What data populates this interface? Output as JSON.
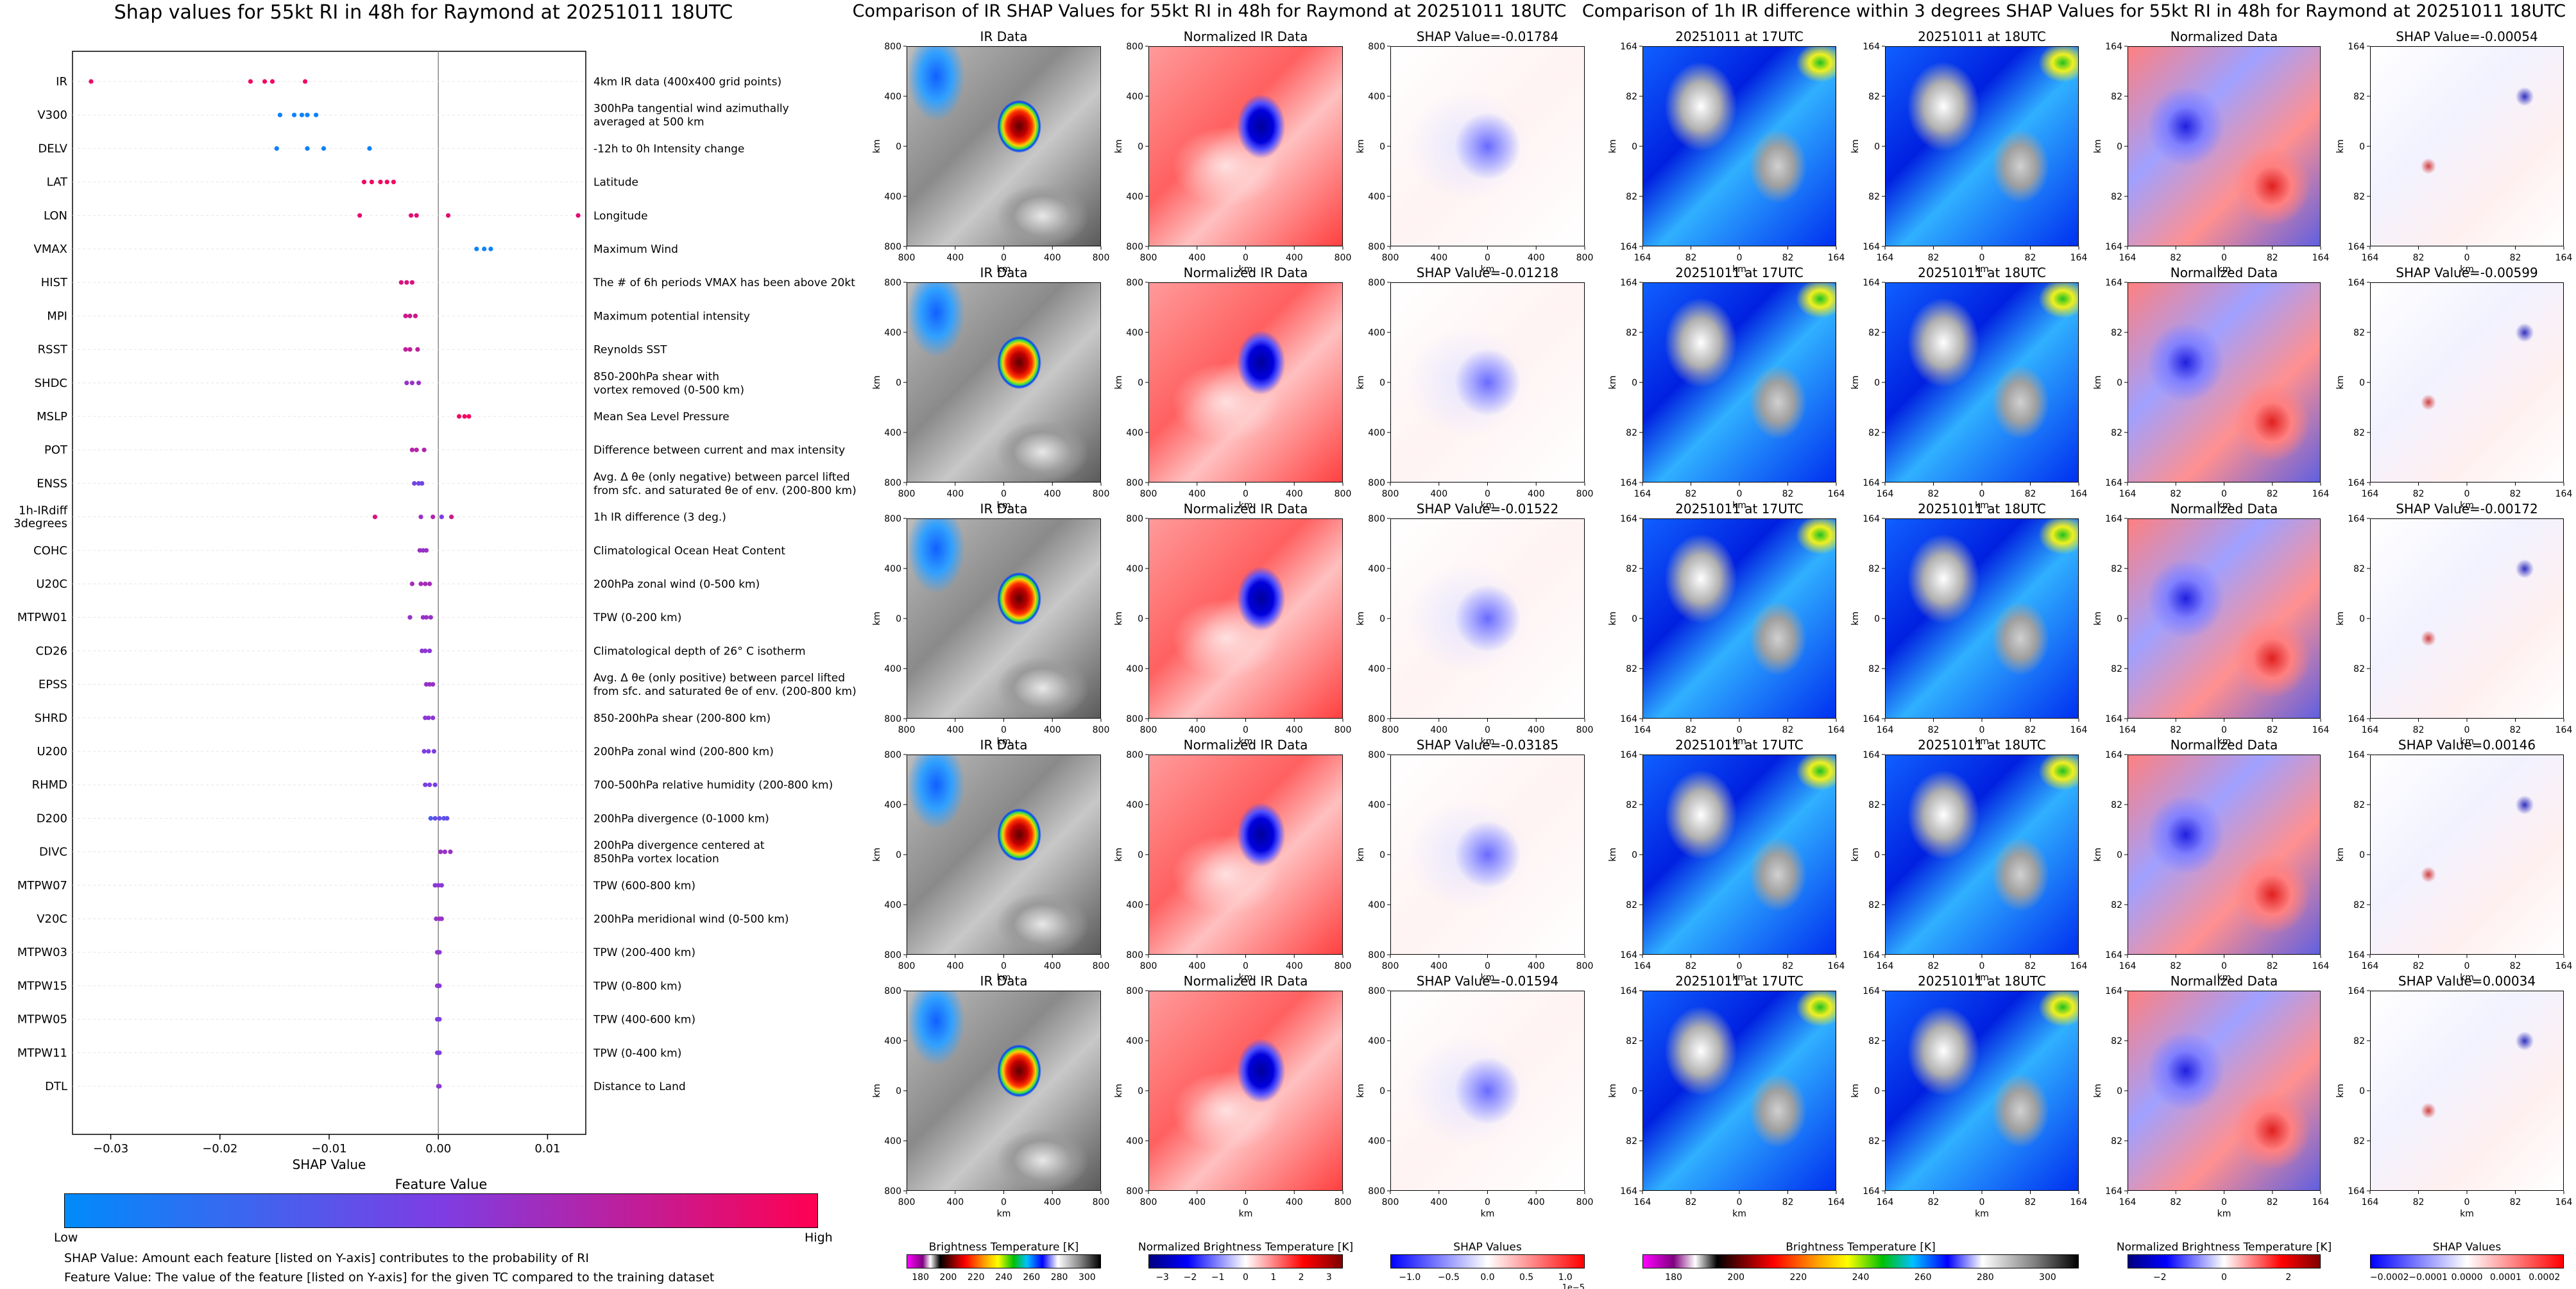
{
  "left_title": "Shap values for 55kt RI in 48h for Raymond at 20251011 18UTC",
  "mid_title": "Comparison of IR SHAP Values for 55kt RI in 48h for Raymond at 20251011 18UTC",
  "right_title": "Comparison of 1h IR difference within 3 degrees SHAP Values for 55kt RI in 48h for Raymond at 20251011 18UTC",
  "colors": {
    "low": "#008bfb",
    "high": "#ff0052"
  },
  "feature_colorbar": {
    "title": "Feature Value",
    "low": "Low",
    "high": "High"
  },
  "notes": [
    "SHAP Value: Amount each feature [listed on Y-axis] contributes to the probability of RI",
    "Feature Value: The value of the feature [listed on Y-axis] for the given TC compared to the training dataset"
  ],
  "chart_data": [
    {
      "type": "scatter",
      "title": "Shap values for 55kt RI in 48h for Raymond at 20251011 18UTC",
      "xlabel": "SHAP Value",
      "xticks": [
        "−0.03",
        "−0.02",
        "−0.01",
        "0.00",
        "0.01"
      ],
      "xlim": [
        -0.0335,
        0.0135
      ],
      "features": [
        {
          "name": "IR",
          "desc": "4km IR data (400x400 grid points)",
          "points": [
            [
              -0.0318,
              0.95
            ],
            [
              -0.0172,
              0.95
            ],
            [
              -0.0159,
              0.95
            ],
            [
              -0.0152,
              0.95
            ],
            [
              -0.0122,
              0.95
            ]
          ]
        },
        {
          "name": "V300",
          "desc": "300hPa tangential wind azimuthally\naveraged at 500 km",
          "points": [
            [
              -0.0145,
              0.05
            ],
            [
              -0.0132,
              0.05
            ],
            [
              -0.0125,
              0.05
            ],
            [
              -0.012,
              0.05
            ],
            [
              -0.0112,
              0.05
            ]
          ]
        },
        {
          "name": "DELV",
          "desc": "-12h to 0h Intensity change",
          "points": [
            [
              -0.0148,
              0.05
            ],
            [
              -0.012,
              0.05
            ],
            [
              -0.0105,
              0.05
            ],
            [
              -0.0063,
              0.05
            ]
          ]
        },
        {
          "name": "LAT",
          "desc": "Latitude",
          "points": [
            [
              -0.0068,
              0.95
            ],
            [
              -0.0061,
              0.95
            ],
            [
              -0.0053,
              0.95
            ],
            [
              -0.0047,
              0.95
            ],
            [
              -0.0041,
              0.95
            ]
          ]
        },
        {
          "name": "LON",
          "desc": "Longitude",
          "points": [
            [
              -0.0072,
              0.9
            ],
            [
              -0.0025,
              0.9
            ],
            [
              -0.002,
              0.9
            ],
            [
              0.0009,
              0.9
            ],
            [
              0.0128,
              0.9
            ]
          ]
        },
        {
          "name": "VMAX",
          "desc": "Maximum Wind",
          "points": [
            [
              0.0035,
              0.05
            ],
            [
              0.0042,
              0.05
            ],
            [
              0.0048,
              0.05
            ]
          ]
        },
        {
          "name": "HIST",
          "desc": "The # of 6h periods VMAX has been above 20kt",
          "points": [
            [
              -0.0034,
              0.85
            ],
            [
              -0.0029,
              0.85
            ],
            [
              -0.0024,
              0.85
            ]
          ]
        },
        {
          "name": "MPI",
          "desc": "Maximum potential intensity",
          "points": [
            [
              -0.003,
              0.8
            ],
            [
              -0.0026,
              0.8
            ],
            [
              -0.0021,
              0.8
            ]
          ]
        },
        {
          "name": "RSST",
          "desc": "Reynolds SST",
          "points": [
            [
              -0.003,
              0.75
            ],
            [
              -0.0026,
              0.75
            ],
            [
              -0.0019,
              0.75
            ]
          ]
        },
        {
          "name": "SHDC",
          "desc": "850-200hPa shear with\nvortex removed (0-500 km)",
          "points": [
            [
              -0.0029,
              0.6
            ],
            [
              -0.0024,
              0.6
            ],
            [
              -0.0018,
              0.6
            ]
          ]
        },
        {
          "name": "MSLP",
          "desc": "Mean Sea Level Pressure",
          "points": [
            [
              0.0019,
              0.95
            ],
            [
              0.0024,
              0.95
            ],
            [
              0.0028,
              0.95
            ]
          ]
        },
        {
          "name": "POT",
          "desc": "Difference between current and max intensity",
          "points": [
            [
              -0.0024,
              0.7
            ],
            [
              -0.002,
              0.7
            ],
            [
              -0.0013,
              0.7
            ]
          ]
        },
        {
          "name": "ENSS",
          "desc": "Avg. Δ θe (only negative) between parcel lifted\nfrom sfc. and saturated θe of env. (200-800 km)",
          "points": [
            [
              -0.0022,
              0.45
            ],
            [
              -0.0018,
              0.45
            ],
            [
              -0.0015,
              0.45
            ]
          ]
        },
        {
          "name": "1h-IRdiff\n3degrees",
          "desc": "1h IR difference (3 deg.)",
          "points": [
            [
              -0.0058,
              0.85
            ],
            [
              -0.0016,
              0.6
            ],
            [
              -0.0005,
              0.7
            ],
            [
              0.0003,
              0.5
            ],
            [
              0.0012,
              0.8
            ]
          ]
        },
        {
          "name": "COHC",
          "desc": "Climatological Ocean Heat Content",
          "points": [
            [
              -0.0017,
              0.6
            ],
            [
              -0.0014,
              0.6
            ],
            [
              -0.0011,
              0.6
            ]
          ]
        },
        {
          "name": "U20C",
          "desc": "200hPa zonal wind (0-500 km)",
          "points": [
            [
              -0.0024,
              0.65
            ],
            [
              -0.0016,
              0.65
            ],
            [
              -0.0012,
              0.65
            ],
            [
              -0.0008,
              0.65
            ]
          ]
        },
        {
          "name": "MTPW01",
          "desc": "TPW (0-200 km)",
          "points": [
            [
              -0.0026,
              0.6
            ],
            [
              -0.0014,
              0.6
            ],
            [
              -0.0011,
              0.6
            ],
            [
              -0.0007,
              0.6
            ]
          ]
        },
        {
          "name": "CD26",
          "desc": "Climatological depth of 26° C isotherm",
          "points": [
            [
              -0.0015,
              0.55
            ],
            [
              -0.0012,
              0.55
            ],
            [
              -0.0008,
              0.55
            ]
          ]
        },
        {
          "name": "EPSS",
          "desc": "Avg. Δ θe (only positive) between parcel lifted\nfrom sfc. and saturated θe of env. (200-800 km)",
          "points": [
            [
              -0.0011,
              0.6
            ],
            [
              -0.0008,
              0.6
            ],
            [
              -0.0005,
              0.6
            ]
          ]
        },
        {
          "name": "SHRD",
          "desc": "850-200hPa shear (200-800 km)",
          "points": [
            [
              -0.0012,
              0.55
            ],
            [
              -0.0009,
              0.55
            ],
            [
              -0.0005,
              0.55
            ]
          ]
        },
        {
          "name": "U200",
          "desc": "200hPa zonal wind (200-800 km)",
          "points": [
            [
              -0.0013,
              0.5
            ],
            [
              -0.0009,
              0.5
            ],
            [
              -0.0004,
              0.5
            ]
          ]
        },
        {
          "name": "RHMD",
          "desc": "700-500hPa relative humidity (200-800 km)",
          "points": [
            [
              -0.0012,
              0.5
            ],
            [
              -0.0008,
              0.5
            ],
            [
              -0.0003,
              0.5
            ]
          ]
        },
        {
          "name": "D200",
          "desc": "200hPa divergence (0-1000 km)",
          "points": [
            [
              -0.0007,
              0.3
            ],
            [
              -0.0003,
              0.4
            ],
            [
              0.0001,
              0.4
            ],
            [
              0.0005,
              0.35
            ],
            [
              0.0008,
              0.4
            ]
          ]
        },
        {
          "name": "DIVC",
          "desc": "200hPa divergence centered at\n850hPa vortex location",
          "points": [
            [
              0.0002,
              0.6
            ],
            [
              0.0006,
              0.6
            ],
            [
              0.0011,
              0.6
            ]
          ]
        },
        {
          "name": "MTPW07",
          "desc": "TPW (600-800 km)",
          "points": [
            [
              -0.0003,
              0.55
            ],
            [
              0.0,
              0.55
            ],
            [
              0.0003,
              0.55
            ]
          ]
        },
        {
          "name": "V20C",
          "desc": "200hPa meridional wind (0-500 km)",
          "points": [
            [
              -0.0002,
              0.6
            ],
            [
              0.0001,
              0.6
            ],
            [
              0.0003,
              0.6
            ]
          ]
        },
        {
          "name": "MTPW03",
          "desc": "TPW (200-400 km)",
          "points": [
            [
              -0.0001,
              0.55
            ],
            [
              0.0001,
              0.55
            ]
          ]
        },
        {
          "name": "MTPW15",
          "desc": "TPW (0-800 km)",
          "points": [
            [
              -0.0001,
              0.55
            ],
            [
              0.0001,
              0.55
            ]
          ]
        },
        {
          "name": "MTPW05",
          "desc": "TPW (400-600 km)",
          "points": [
            [
              -0.0001,
              0.5
            ],
            [
              0.0001,
              0.5
            ]
          ]
        },
        {
          "name": "MTPW11",
          "desc": "TPW (0-400 km)",
          "points": [
            [
              -0.0001,
              0.5
            ],
            [
              0.0001,
              0.5
            ]
          ]
        },
        {
          "name": "DTL",
          "desc": "Distance to Land",
          "points": [
            [
              0.0,
              0.55
            ],
            [
              0.0001,
              0.55
            ]
          ]
        }
      ]
    },
    {
      "type": "heatmap",
      "title": "Comparison of IR SHAP Values for 55kt RI in 48h for Raymond at 20251011 18UTC",
      "axis_unit": "km",
      "xticks": [
        "800",
        "400",
        "0",
        "400",
        "800"
      ],
      "yticks": [
        "800",
        "400",
        "0",
        "400",
        "800"
      ],
      "panel_titles": [
        "IR Data",
        "Normalized IR Data"
      ],
      "shap_values": [
        "SHAP Value=-0.01784",
        "SHAP Value=-0.01218",
        "SHAP Value=-0.01522",
        "SHAP Value=-0.03185",
        "SHAP Value=-0.01594"
      ],
      "colorbars": [
        {
          "label": "Brightness Temperature [K]",
          "ticks": [
            "180",
            "200",
            "220",
            "240",
            "260",
            "280",
            "300"
          ]
        },
        {
          "label": "Normalized Brightness Temperature [K]",
          "ticks": [
            "−3",
            "−2",
            "−1",
            "0",
            "1",
            "2",
            "3"
          ]
        },
        {
          "label": "SHAP Values",
          "ticks": [
            "−1.0",
            "−0.5",
            "0.0",
            "0.5",
            "1.0"
          ],
          "exponent": "1e−5"
        }
      ]
    },
    {
      "type": "heatmap",
      "title": "Comparison of 1h IR difference within 3 degrees SHAP Values for 55kt RI in 48h for Raymond at 20251011 18UTC",
      "axis_unit": "km",
      "xticks": [
        "164",
        "82",
        "0",
        "82",
        "164"
      ],
      "yticks": [
        "164",
        "82",
        "0",
        "82",
        "164"
      ],
      "panel_titles": [
        "20251011 at 17UTC",
        "20251011 at 18UTC",
        "Normalized Data"
      ],
      "shap_values": [
        "SHAP Value=-0.00054",
        "SHAP Value=-0.00599",
        "SHAP Value=-0.00172",
        "SHAP Value=0.00146",
        "SHAP Value=0.00034"
      ],
      "colorbars": [
        {
          "label": "Brightness Temperature [K]",
          "ticks": [
            "180",
            "200",
            "220",
            "240",
            "260",
            "280",
            "300"
          ]
        },
        {
          "label": "Normalized Brightness Temperature [K]",
          "ticks": [
            "−2",
            "0",
            "2"
          ]
        },
        {
          "label": "SHAP Values",
          "ticks": [
            "−0.0002",
            "−0.0001",
            "0.0000",
            "0.0001",
            "0.0002"
          ]
        }
      ]
    }
  ]
}
